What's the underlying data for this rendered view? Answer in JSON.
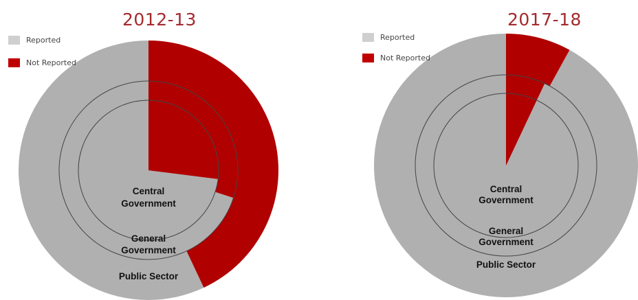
{
  "colors": {
    "reported": "#b0b0b0",
    "not_reported": "#b00000",
    "ring_outline": "#444444"
  },
  "legend": {
    "reported_label": "Reported",
    "not_reported_label": "Not Reported"
  },
  "ring_labels": {
    "central_line1": "Central",
    "central_line2": "Government",
    "general_line1": "General",
    "general_line2": "Government",
    "public": "Public Sector"
  },
  "chart_data": [
    {
      "type": "pie",
      "title": "2012-13",
      "rings": [
        {
          "name": "Central Government",
          "not_reported_fraction": 0.27,
          "reported_fraction": 0.73
        },
        {
          "name": "General Government",
          "not_reported_fraction": 0.3,
          "reported_fraction": 0.7
        },
        {
          "name": "Public Sector",
          "not_reported_fraction": 0.43,
          "reported_fraction": 0.57
        }
      ],
      "legend_labels": [
        "Reported",
        "Not Reported"
      ]
    },
    {
      "type": "pie",
      "title": "2017-18",
      "rings": [
        {
          "name": "Central Government",
          "not_reported_fraction": 0.07,
          "reported_fraction": 0.93
        },
        {
          "name": "General Government",
          "not_reported_fraction": 0.07,
          "reported_fraction": 0.93
        },
        {
          "name": "Public Sector",
          "not_reported_fraction": 0.08,
          "reported_fraction": 0.92
        }
      ],
      "legend_labels": [
        "Reported",
        "Not Reported"
      ]
    }
  ]
}
